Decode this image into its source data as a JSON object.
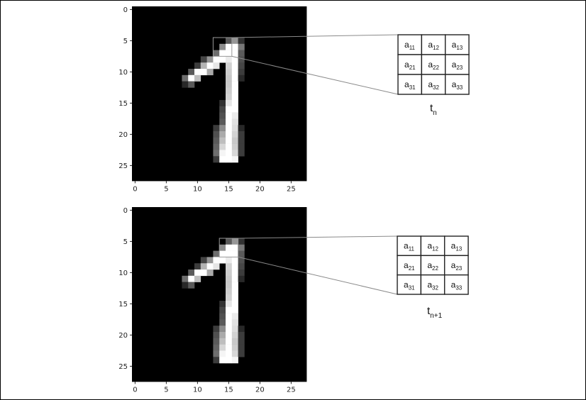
{
  "panels": [
    {
      "id": "top",
      "x_ticks": [
        "0",
        "5",
        "10",
        "15",
        "20",
        "25"
      ],
      "y_ticks": [
        "0",
        "5",
        "10",
        "15",
        "20",
        "25"
      ],
      "window": {
        "row": 5,
        "col": 13
      },
      "matrix": [
        [
          {
            "base": "a",
            "sub": "11"
          },
          {
            "base": "a",
            "sub": "12"
          },
          {
            "base": "a",
            "sub": "13"
          }
        ],
        [
          {
            "base": "a",
            "sub": "21"
          },
          {
            "base": "a",
            "sub": "22"
          },
          {
            "base": "a",
            "sub": "23"
          }
        ],
        [
          {
            "base": "a",
            "sub": "31"
          },
          {
            "base": "a",
            "sub": "32"
          },
          {
            "base": "a",
            "sub": "33"
          }
        ]
      ],
      "caption": {
        "base": "t",
        "sub": "n"
      }
    },
    {
      "id": "bottom",
      "x_ticks": [
        "0",
        "5",
        "10",
        "15",
        "20",
        "25"
      ],
      "y_ticks": [
        "0",
        "5",
        "10",
        "15",
        "20",
        "25"
      ],
      "window": {
        "row": 5,
        "col": 14
      },
      "matrix": [
        [
          {
            "base": "a",
            "sub": "11"
          },
          {
            "base": "a",
            "sub": "12"
          },
          {
            "base": "a",
            "sub": "13"
          }
        ],
        [
          {
            "base": "a",
            "sub": "21"
          },
          {
            "base": "a",
            "sub": "22"
          },
          {
            "base": "a",
            "sub": "23"
          }
        ],
        [
          {
            "base": "a",
            "sub": "31"
          },
          {
            "base": "a",
            "sub": "32"
          },
          {
            "base": "a",
            "sub": "33"
          }
        ]
      ],
      "caption": {
        "base": "t",
        "sub": "n+1"
      }
    }
  ],
  "digit_pixels": [
    [
      5,
      15,
      90
    ],
    [
      5,
      16,
      150
    ],
    [
      5,
      17,
      50
    ],
    [
      6,
      14,
      140
    ],
    [
      6,
      15,
      255
    ],
    [
      6,
      16,
      255
    ],
    [
      6,
      17,
      120
    ],
    [
      7,
      13,
      110
    ],
    [
      7,
      14,
      255
    ],
    [
      7,
      15,
      255
    ],
    [
      7,
      16,
      255
    ],
    [
      7,
      17,
      90
    ],
    [
      8,
      11,
      70
    ],
    [
      8,
      12,
      150
    ],
    [
      8,
      13,
      255
    ],
    [
      8,
      14,
      255
    ],
    [
      8,
      15,
      235
    ],
    [
      8,
      16,
      255
    ],
    [
      8,
      17,
      80
    ],
    [
      9,
      10,
      60
    ],
    [
      9,
      11,
      180
    ],
    [
      9,
      12,
      255
    ],
    [
      9,
      13,
      230
    ],
    [
      9,
      15,
      210
    ],
    [
      9,
      16,
      255
    ],
    [
      9,
      17,
      70
    ],
    [
      10,
      9,
      90
    ],
    [
      10,
      10,
      255
    ],
    [
      10,
      11,
      255
    ],
    [
      10,
      12,
      170
    ],
    [
      10,
      15,
      205
    ],
    [
      10,
      16,
      255
    ],
    [
      10,
      17,
      60
    ],
    [
      11,
      8,
      110
    ],
    [
      11,
      9,
      255
    ],
    [
      11,
      10,
      190
    ],
    [
      11,
      15,
      200
    ],
    [
      11,
      16,
      255
    ],
    [
      11,
      17,
      40
    ],
    [
      12,
      8,
      40
    ],
    [
      12,
      9,
      90
    ],
    [
      12,
      15,
      200
    ],
    [
      12,
      16,
      255
    ],
    [
      13,
      15,
      205
    ],
    [
      13,
      16,
      255
    ],
    [
      14,
      15,
      210
    ],
    [
      14,
      16,
      255
    ],
    [
      15,
      14,
      50
    ],
    [
      15,
      15,
      230
    ],
    [
      15,
      16,
      255
    ],
    [
      16,
      14,
      70
    ],
    [
      16,
      15,
      255
    ],
    [
      16,
      16,
      255
    ],
    [
      17,
      14,
      80
    ],
    [
      17,
      15,
      255
    ],
    [
      17,
      16,
      235
    ],
    [
      18,
      14,
      90
    ],
    [
      18,
      15,
      255
    ],
    [
      18,
      16,
      225
    ],
    [
      19,
      13,
      60
    ],
    [
      19,
      14,
      140
    ],
    [
      19,
      15,
      255
    ],
    [
      19,
      16,
      220
    ],
    [
      19,
      17,
      40
    ],
    [
      20,
      13,
      80
    ],
    [
      20,
      14,
      170
    ],
    [
      20,
      15,
      255
    ],
    [
      20,
      16,
      210
    ],
    [
      20,
      17,
      60
    ],
    [
      21,
      13,
      90
    ],
    [
      21,
      14,
      190
    ],
    [
      21,
      15,
      255
    ],
    [
      21,
      16,
      200
    ],
    [
      21,
      17,
      60
    ],
    [
      22,
      13,
      100
    ],
    [
      22,
      14,
      215
    ],
    [
      22,
      15,
      255
    ],
    [
      22,
      16,
      205
    ],
    [
      22,
      17,
      60
    ],
    [
      23,
      13,
      110
    ],
    [
      23,
      14,
      245
    ],
    [
      23,
      15,
      255
    ],
    [
      23,
      16,
      215
    ],
    [
      23,
      17,
      60
    ],
    [
      24,
      13,
      60
    ],
    [
      24,
      14,
      255
    ],
    [
      24,
      15,
      255
    ],
    [
      24,
      16,
      245
    ]
  ]
}
